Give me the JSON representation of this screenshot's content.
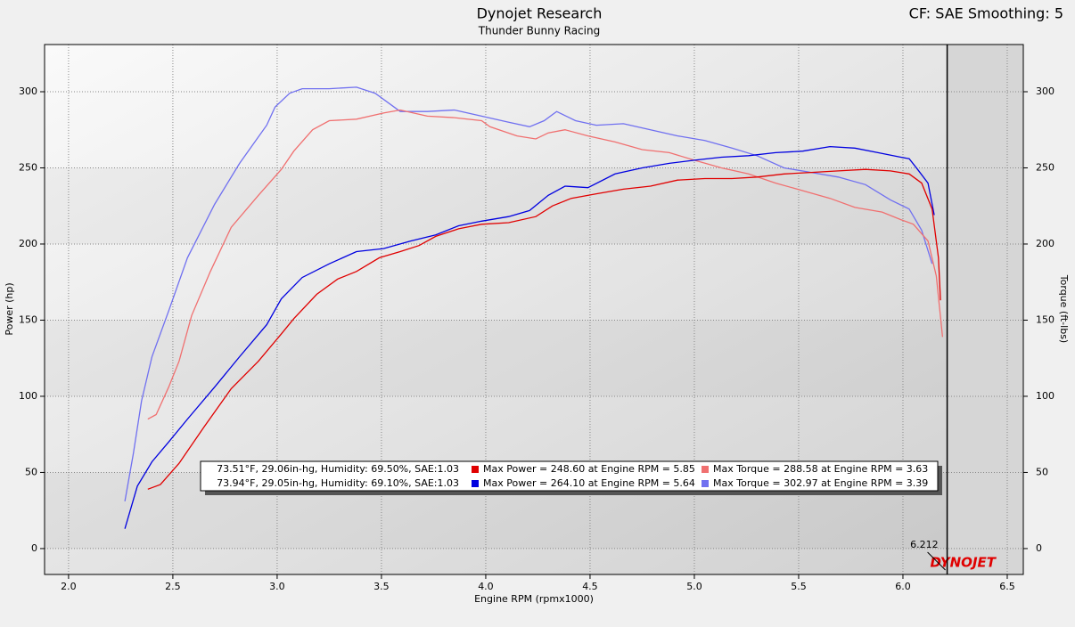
{
  "chart_data": {
    "type": "line",
    "title": "Dynojet Research",
    "subtitle": "Thunder Bunny Racing",
    "header_right": "CF: SAE Smoothing: 5",
    "xlabel": "Engine RPM (rpmx1000)",
    "ylabel": "Power (hp)",
    "y2label": "Torque (ft-lbs)",
    "logo": "DYNOJET",
    "cursor_rpm": 6.212,
    "xlim": [
      1.885,
      6.577
    ],
    "xticks": [
      {
        "value": 2,
        "label": "2.0"
      },
      2.5,
      {
        "value": 3,
        "label": "3.0"
      },
      3.5,
      {
        "value": 4,
        "label": "4.0"
      },
      4.5,
      {
        "value": 5,
        "label": "5.0"
      },
      5.5,
      {
        "value": 6,
        "label": "6.0"
      },
      6.5
    ],
    "ylim": [
      -17,
      331
    ],
    "yticks": [
      0,
      50,
      100,
      150,
      200,
      250,
      300
    ],
    "y2lim": [
      -17,
      331
    ],
    "y2ticks": [
      0,
      50,
      100,
      150,
      200,
      250,
      300
    ],
    "grid": true,
    "series": [
      {
        "color": "#7070f0",
        "axis": "y2",
        "x": [
          2.27,
          2.31,
          2.35,
          2.4,
          2.48,
          2.57,
          2.7,
          2.82,
          2.95,
          2.99,
          3.06,
          3.12,
          3.25,
          3.38,
          3.47,
          3.59,
          3.72,
          3.85,
          3.98,
          4.11,
          4.21,
          4.28,
          4.34,
          4.43,
          4.53,
          4.66,
          4.79,
          4.92,
          5.05,
          5.18,
          5.3,
          5.43,
          5.56,
          5.69,
          5.82,
          5.94,
          6.03,
          6.09,
          6.14
        ],
        "values": [
          31,
          62,
          97,
          126,
          156,
          191,
          226,
          253,
          278,
          290,
          299,
          302,
          302,
          303,
          299,
          287,
          287,
          288,
          284,
          280,
          277,
          281,
          287,
          281,
          278,
          279,
          275,
          271,
          268,
          263,
          258,
          250,
          247,
          244,
          239,
          229,
          223,
          209,
          187
        ]
      },
      {
        "color": "#f07070",
        "axis": "y2",
        "x": [
          2.38,
          2.42,
          2.48,
          2.53,
          2.59,
          2.68,
          2.78,
          2.91,
          3.02,
          3.08,
          3.17,
          3.25,
          3.38,
          3.51,
          3.59,
          3.72,
          3.85,
          3.98,
          4.02,
          4.15,
          4.24,
          4.3,
          4.38,
          4.49,
          4.62,
          4.75,
          4.88,
          5.0,
          5.13,
          5.26,
          5.39,
          5.52,
          5.65,
          5.77,
          5.9,
          5.99,
          6.05,
          6.12,
          6.16,
          6.19
        ],
        "values": [
          85,
          88,
          106,
          123,
          153,
          182,
          211,
          232,
          249,
          261,
          275,
          281,
          282,
          286,
          288,
          284,
          283,
          281,
          277,
          271,
          269,
          273,
          275,
          271,
          267,
          262,
          260,
          255,
          250,
          246,
          240,
          235,
          230,
          224,
          221,
          216,
          213,
          202,
          179,
          139
        ]
      },
      {
        "color": "#0000e0",
        "x": [
          2.27,
          2.33,
          2.4,
          2.48,
          2.57,
          2.7,
          2.82,
          2.95,
          3.02,
          3.12,
          3.25,
          3.38,
          3.51,
          3.64,
          3.76,
          3.87,
          3.98,
          4.11,
          4.21,
          4.3,
          4.38,
          4.49,
          4.62,
          4.75,
          4.88,
          5.0,
          5.13,
          5.26,
          5.39,
          5.52,
          5.65,
          5.77,
          5.88,
          5.99,
          6.03,
          6.07,
          6.12,
          6.15
        ],
        "values": [
          13,
          41,
          57,
          70,
          85,
          106,
          126,
          147,
          164,
          178,
          187,
          195,
          197,
          202,
          206,
          212,
          215,
          218,
          222,
          232,
          238,
          237,
          246,
          250,
          253,
          255,
          257,
          258,
          260,
          261,
          264,
          263,
          260,
          257,
          256,
          249,
          240,
          219
        ]
      },
      {
        "color": "#e00000",
        "x": [
          2.38,
          2.44,
          2.53,
          2.65,
          2.78,
          2.91,
          3.02,
          3.08,
          3.19,
          3.29,
          3.38,
          3.49,
          3.59,
          3.68,
          3.76,
          3.87,
          3.98,
          4.11,
          4.24,
          4.32,
          4.41,
          4.53,
          4.66,
          4.79,
          4.92,
          5.05,
          5.18,
          5.3,
          5.43,
          5.56,
          5.69,
          5.82,
          5.94,
          6.03,
          6.09,
          6.14,
          6.17,
          6.18
        ],
        "values": [
          39,
          42,
          56,
          80,
          105,
          123,
          141,
          151,
          167,
          177,
          182,
          191,
          195,
          199,
          205,
          210,
          213,
          214,
          218,
          225,
          230,
          233,
          236,
          238,
          242,
          243,
          243,
          244,
          246,
          247,
          248,
          249,
          248,
          246,
          240,
          223,
          191,
          163
        ]
      }
    ],
    "legend": {
      "rows": [
        {
          "conditions": "73.51°F, 29.06in-hg, Humidity: 69.50%, SAE:1.03",
          "items": [
            {
              "text": "Max Power = 248.60 at Engine RPM = 5.85",
              "color": "#e00000"
            },
            {
              "text": "Max Torque = 288.58 at Engine RPM = 3.63",
              "color": "#f07070"
            }
          ]
        },
        {
          "conditions": "73.94°F, 29.05in-hg, Humidity: 69.10%, SAE:1.03",
          "items": [
            {
              "text": "Max Power = 264.10 at Engine RPM = 5.64",
              "color": "#0000e0"
            },
            {
              "text": "Max Torque = 302.97 at Engine RPM = 3.39",
              "color": "#7070f0"
            }
          ]
        }
      ]
    }
  }
}
